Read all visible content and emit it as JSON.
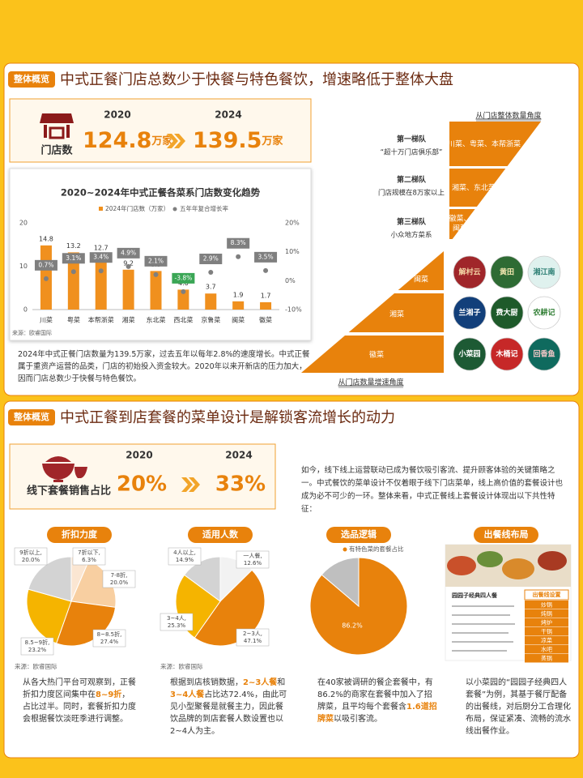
{
  "panel1": {
    "tag": "整体概览",
    "title": "中式正餐门店总数少于快餐与特色餐饮，增速略低于整体大盘",
    "stats": {
      "label": "门店数",
      "items": [
        {
          "year": "2020",
          "value": "124.8",
          "unit": "万家"
        },
        {
          "year": "2024",
          "value": "139.5",
          "unit": "万家"
        }
      ]
    },
    "paragraph": "2024年中式正餐门店数量为139.5万家，过去五年以每年2.8%的速度增长。中式正餐属于重资产运营的品类，门店的初始投入资金较大。2020年以来开新店的压力加大，因而门店总数少于快餐与特色餐饮。",
    "pyramid": {
      "top_caption": "从门店整体数量角度",
      "tiers": [
        {
          "name": "第一梯队",
          "desc": "“超十万门店俱乐部”",
          "cuisines": [
            "川菜、粤菜、本帮浙菜"
          ]
        },
        {
          "name": "第二梯队",
          "desc": "门店规模在8万家以上",
          "cuisines": [
            "湘菜、东北菜"
          ]
        },
        {
          "name": "第三梯队",
          "desc": "小众地方菜系",
          "cuisines": [
            "徽菜、",
            "闽菜"
          ]
        }
      ],
      "bottom_caption": "从门店数量增速角度",
      "growth_tiers": [
        "闽菜",
        "湘菜",
        "徽菜"
      ]
    },
    "logos": [
      {
        "name": "解村云",
        "color": "#a0262a",
        "text_color": "#f5d9a8"
      },
      {
        "name": "黄田",
        "color": "#2e6b34",
        "text_color": "#f3e7b0"
      },
      {
        "name": "湘江南",
        "color": "#dff1ee",
        "text_color": "#2a7d72"
      },
      {
        "name": "兰湘子",
        "color": "#123f7a",
        "text_color": "#ffffff"
      },
      {
        "name": "费大厨",
        "color": "#1e5a2a",
        "text_color": "#ffffff"
      },
      {
        "name": "农耕记",
        "color": "#ffffff",
        "text_color": "#2e7d32"
      },
      {
        "name": "小菜园",
        "color": "#1d5a34",
        "text_color": "#ffffff"
      },
      {
        "name": "木桶记",
        "color": "#c62828",
        "text_color": "#ffffff"
      },
      {
        "name": "回香鱼",
        "color": "#0f6a5e",
        "text_color": "#f7c9c9"
      }
    ]
  },
  "panel2": {
    "tag": "整体概览",
    "title": "中式正餐到店套餐的菜单设计是解锁客流增长的动力",
    "stats": {
      "label": "线下套餐销售占比",
      "items": [
        {
          "year": "2020",
          "value": "20%"
        },
        {
          "year": "2024",
          "value": "33%"
        }
      ]
    },
    "intro": "如今，线下线上运营联动已成为餐饮吸引客流、提升顾客体验的关键策略之一。中式餐饮的菜单设计不仅着眼于线下门店菜单，线上高价值的套餐设计也成为必不可少的一环。整体来看，中式正餐线上套餐设计体现出以下共性特征：",
    "layout_image": {
      "title": "出餐线布局",
      "menu_title": "园园子经典四人餐",
      "stations_title": "出餐线设置",
      "stations": [
        "炒锅",
        "炖锅",
        "烤炉",
        "干锅",
        "凉菜",
        "水吧",
        "蒸锅"
      ]
    },
    "notes": [
      [
        {
          "text": "从各大热门平台可观察到，正餐折扣力度区间集中在",
          "highlight": false
        },
        {
          "text": "8~9折",
          "highlight": true
        },
        {
          "text": "，占比过半。同时，套餐折扣力度会根据餐饮淡旺季进行调整。",
          "highlight": false
        }
      ],
      [
        {
          "text": "根据到店核销数据，",
          "highlight": false
        },
        {
          "text": "2~3人餐",
          "highlight": true
        },
        {
          "text": "和",
          "highlight": false
        },
        {
          "text": "3~4人餐",
          "highlight": true
        },
        {
          "text": "占比达72.4%，由此可见小型聚餐是就餐主力，因此餐饮品牌的到店套餐人数设置也以2~4人为主。",
          "highlight": false
        }
      ],
      [
        {
          "text": "在40家被调研的餐企套餐中，有86.2%的商家在套餐中加入了招牌菜，且平均每个套餐含",
          "highlight": false
        },
        {
          "text": "1.6道招牌菜",
          "highlight": true
        },
        {
          "text": "以吸引客流。",
          "highlight": false
        }
      ],
      [
        {
          "text": "以小菜园的“园园子经典四人套餐”为例，其基于餐厅配备的出餐线，对后厨分工合理化布局，保证紧凑、流畅的流水线出餐作业。",
          "highlight": false
        }
      ]
    ]
  },
  "chart_data": [
    {
      "type": "bar",
      "title": "2020~2024年中式正餐各菜系门店数变化趋势",
      "categories": [
        "川菜",
        "粤菜",
        "本帮浙菜",
        "湘菜",
        "东北菜",
        "西北菜",
        "京鲁菜",
        "闽菜",
        "徽菜"
      ],
      "series": [
        {
          "name": "2024年门店数（万家）",
          "color": "#f0901e",
          "values": [
            14.8,
            13.2,
            12.7,
            9.2,
            8.9,
            4.6,
            3.7,
            1.9,
            1.7
          ]
        },
        {
          "name": "五年年复合增长率",
          "type": "scatter",
          "axis": "y2",
          "color": "#7f7f7f",
          "negative_color": "#3aa655",
          "values": [
            0.7,
            3.1,
            3.4,
            4.9,
            2.1,
            -3.8,
            2.9,
            8.3,
            3.5
          ],
          "value_labels": [
            "0.7%",
            "3.1%",
            "3.4%",
            "4.9%",
            "2.1%",
            "-3.8%",
            "2.9%",
            "8.3%",
            "3.5%"
          ]
        }
      ],
      "ylim": [
        0,
        20
      ],
      "yticks": [
        0,
        10,
        20
      ],
      "y2lim": [
        -10,
        20
      ],
      "y2ticks": [
        {
          "value": -10,
          "label": "-10%"
        },
        {
          "value": 0,
          "label": "0%"
        },
        {
          "value": 10,
          "label": "10%"
        },
        {
          "value": 20,
          "label": "20%"
        }
      ],
      "source": "来源：欧睿国际"
    },
    {
      "type": "pie",
      "title": "折扣力度",
      "categories": [
        "7折以下,",
        "7-8折,",
        "8~8.5折,",
        "8.5~9折,",
        "9折以上,"
      ],
      "values": [
        6.3,
        20.0,
        27.4,
        23.2,
        20.0
      ],
      "value_labels": [
        "6.3%",
        "20.0%",
        "27.4%",
        "23.2%",
        "20.0%"
      ],
      "colors": [
        "#fbe6d2",
        "#f8cfa1",
        "#e8820c",
        "#f5b400",
        "#d3d3d3"
      ],
      "source": "来源：欧睿国际"
    },
    {
      "type": "pie",
      "title": "适用人数",
      "categories": [
        "一人餐,",
        "2~3人,",
        "3~4人,",
        "4人以上,"
      ],
      "values": [
        12.6,
        47.1,
        25.3,
        14.9
      ],
      "value_labels": [
        "12.6%",
        "47.1%",
        "25.3%",
        "14.9%"
      ],
      "colors": [
        "#f2f2f2",
        "#e8820c",
        "#f5b400",
        "#d3d3d3"
      ],
      "source": "来源：欧睿国际"
    },
    {
      "type": "pie",
      "title": "选品逻辑",
      "categories": [
        "有特色菜的套餐占比",
        null
      ],
      "values": [
        86.2,
        13.8
      ],
      "value_labels": [
        "86.2%",
        null
      ],
      "colors": [
        "#e8820c",
        "#bfbfbf"
      ]
    }
  ]
}
